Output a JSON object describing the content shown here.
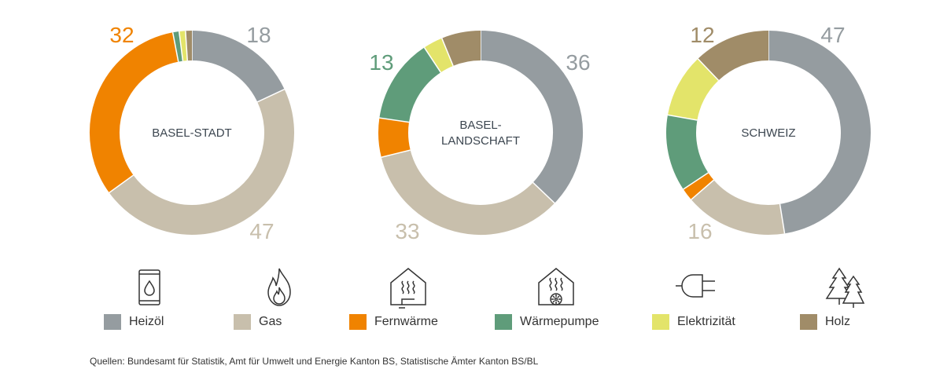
{
  "chart_data": [
    {
      "type": "pie",
      "title": "BASEL-STADT",
      "categories": [
        "Heizöl",
        "Gas",
        "Fernwärme",
        "Wärmepumpe",
        "Elektrizität",
        "Holz"
      ],
      "values": [
        18,
        47,
        32,
        1,
        1,
        1
      ],
      "data_labels": [
        "18",
        "47",
        "32",
        "",
        "",
        ""
      ]
    },
    {
      "type": "pie",
      "title": "BASEL-\nLANDSCHAFT",
      "categories": [
        "Heizöl",
        "Gas",
        "Fernwärme",
        "Wärmepumpe",
        "Elektrizität",
        "Holz"
      ],
      "values": [
        36,
        33,
        6,
        13,
        3,
        6
      ],
      "data_labels": [
        "36",
        "33",
        "",
        "13",
        "",
        ""
      ]
    },
    {
      "type": "pie",
      "title": "SCHWEIZ",
      "categories": [
        "Heizöl",
        "Gas",
        "Fernwärme",
        "Wärmepumpe",
        "Elektrizität",
        "Holz"
      ],
      "values": [
        47,
        16,
        2,
        12,
        10,
        12
      ],
      "data_labels": [
        "47",
        "16",
        "",
        "",
        "",
        "12"
      ]
    }
  ],
  "legend": [
    {
      "label": "Heizöl",
      "color": "#959ca0",
      "icon": "oil-barrel-icon"
    },
    {
      "label": "Gas",
      "color": "#c8bfac",
      "icon": "flame-icon"
    },
    {
      "label": "Fernwärme",
      "color": "#f08300",
      "icon": "district-heating-icon"
    },
    {
      "label": "Wärmepumpe",
      "color": "#5f9c7a",
      "icon": "heat-pump-icon"
    },
    {
      "label": "Elektrizität",
      "color": "#e3e46a",
      "icon": "plug-icon"
    },
    {
      "label": "Holz",
      "color": "#a08c68",
      "icon": "trees-icon"
    }
  ],
  "source": "Quellen: Bundesamt für Statistik, Amt für Umwelt und Energie Kanton BS, Statistische Ämter Kanton BS/BL"
}
